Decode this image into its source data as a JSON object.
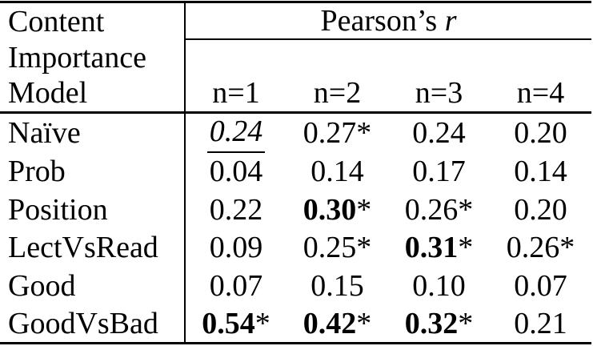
{
  "colors": {
    "text": "#000000",
    "background": "#ffffff",
    "rule": "#000000"
  },
  "table": {
    "header": {
      "col1_lines": [
        "Content",
        "Importance",
        "Model"
      ],
      "group": {
        "prefix": "Pearson’s",
        "symbol": "r"
      },
      "subcols": [
        "n=1",
        "n=2",
        "n=3",
        "n=4"
      ]
    },
    "rows": [
      {
        "label": "Naïve",
        "cells": [
          {
            "num": "0.24",
            "star": ""
          },
          {
            "num": "0.27",
            "star": "*"
          },
          {
            "num": "0.24",
            "star": ""
          },
          {
            "num": "0.20",
            "star": ""
          }
        ]
      },
      {
        "label": "Prob",
        "cells": [
          {
            "num": "0.04",
            "star": ""
          },
          {
            "num": "0.14",
            "star": ""
          },
          {
            "num": "0.17",
            "star": ""
          },
          {
            "num": "0.14",
            "star": ""
          }
        ]
      },
      {
        "label": "Position",
        "cells": [
          {
            "num": "0.22",
            "star": ""
          },
          {
            "num": "0.30",
            "star": "*"
          },
          {
            "num": "0.26",
            "star": "*"
          },
          {
            "num": "0.20",
            "star": ""
          }
        ]
      },
      {
        "label": "LectVsRead",
        "cells": [
          {
            "num": "0.09",
            "star": ""
          },
          {
            "num": "0.25",
            "star": "*"
          },
          {
            "num": "0.31",
            "star": "*"
          },
          {
            "num": "0.26",
            "star": "*"
          }
        ]
      },
      {
        "label": "Good",
        "cells": [
          {
            "num": "0.07",
            "star": ""
          },
          {
            "num": "0.15",
            "star": ""
          },
          {
            "num": "0.10",
            "star": ""
          },
          {
            "num": "0.07",
            "star": ""
          }
        ]
      },
      {
        "label": "GoodVsBad",
        "cells": [
          {
            "num": "0.54",
            "star": "*"
          },
          {
            "num": "0.42",
            "star": "*"
          },
          {
            "num": "0.32",
            "star": "*"
          },
          {
            "num": "0.21",
            "star": ""
          }
        ]
      }
    ]
  }
}
